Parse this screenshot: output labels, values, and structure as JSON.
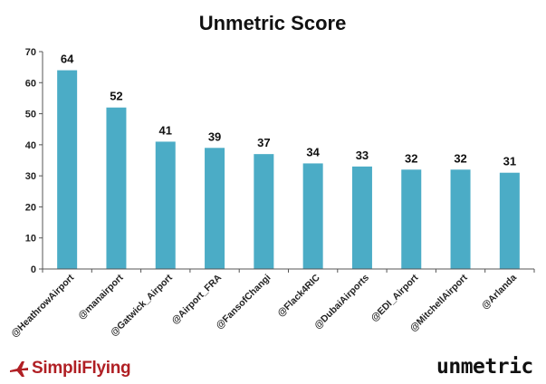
{
  "chart_data": {
    "type": "bar",
    "title": "Unmetric Score",
    "xlabel": "",
    "ylabel": "",
    "categories": [
      "@HeathrowAirport",
      "@manairport",
      "@Gatwick_Airport",
      "@Airport_FRA",
      "@FansofChangi",
      "@Flack4RIC",
      "@DubaiAirports",
      "@EDI_Airport",
      "@MitchellAirport",
      "@Arlanda"
    ],
    "values": [
      64,
      52,
      41,
      39,
      37,
      34,
      33,
      32,
      32,
      31
    ],
    "yticks": [
      "0",
      "10",
      "20",
      "30",
      "40",
      "50",
      "60",
      "70"
    ],
    "ylim": [
      0,
      70
    ],
    "grid": false,
    "legend": "none",
    "bar_color": "#4bacc6"
  },
  "logos": {
    "left": "SimpliFlying",
    "right": "unmetric"
  }
}
